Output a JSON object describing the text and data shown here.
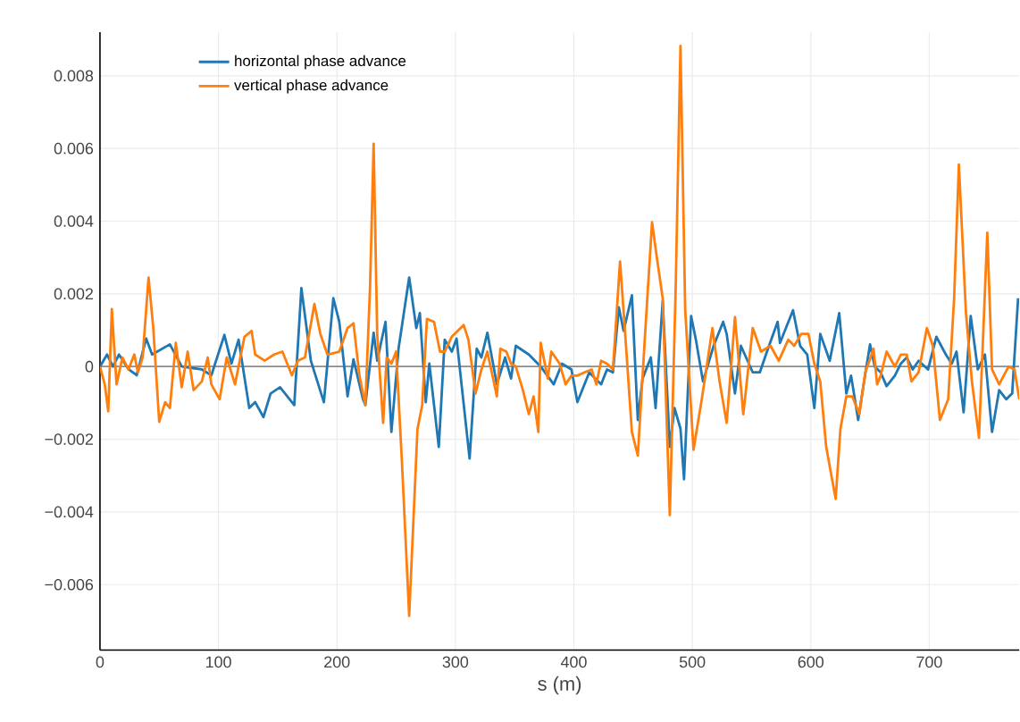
{
  "chart_data": {
    "type": "line",
    "xlabel": "s (m)",
    "xlim": [
      0,
      776
    ],
    "ylim": [
      -0.0078,
      0.0092
    ],
    "xticks": [
      0,
      100,
      200,
      300,
      400,
      500,
      600,
      700
    ],
    "yticks": [
      {
        "value": -0.006,
        "label": "−0.006"
      },
      {
        "value": -0.004,
        "label": "−0.004"
      },
      {
        "value": -0.002,
        "label": "−0.002"
      },
      0,
      0.002,
      0.004,
      0.006,
      0.008
    ],
    "grid": true,
    "legend": "top left",
    "marker": "none",
    "line_style": "solid",
    "series": [
      {
        "name": "horizontal phase advance",
        "color": "#1f77b4",
        "x": [
          0,
          6,
          11,
          16,
          24,
          31,
          39,
          44,
          59,
          69,
          79,
          86,
          94,
          105,
          111,
          117,
          126,
          131,
          138,
          144,
          152,
          164,
          170,
          178,
          189,
          197,
          202,
          209,
          214,
          222,
          224,
          231,
          234,
          241,
          246,
          252,
          261,
          267,
          270,
          275,
          278,
          286,
          291,
          297,
          301,
          312,
          318,
          322,
          327,
          335,
          342,
          347,
          351,
          362,
          372,
          383,
          390,
          398,
          403,
          413,
          423,
          428,
          433,
          438,
          442,
          449,
          454,
          458,
          465,
          469,
          475,
          481,
          485,
          490,
          493,
          499,
          503,
          509,
          518,
          526,
          529,
          536,
          541,
          551,
          557,
          563,
          572,
          574,
          585,
          591,
          597,
          603,
          608,
          616,
          624,
          630,
          634,
          640,
          645,
          650,
          654,
          659,
          664,
          671,
          676,
          681,
          686,
          691,
          699,
          706,
          714,
          719,
          723,
          729,
          735,
          741,
          747,
          753,
          759,
          765,
          770,
          775
        ],
        "values": [
          0,
          0.00033,
          0,
          0.00033,
          -7e-05,
          -0.00024,
          0.00077,
          0.00033,
          0.00061,
          0,
          -5e-05,
          -8e-05,
          -0.00024,
          0.00087,
          8e-05,
          0.00074,
          -0.00114,
          -0.00098,
          -0.00139,
          -0.00074,
          -0.00057,
          -0.00106,
          0.00216,
          0.00016,
          -0.00098,
          0.00188,
          0.00123,
          -0.00082,
          0.0002,
          -0.0009,
          -0.00106,
          0.00093,
          0.00016,
          0.00123,
          -0.0018,
          0.00049,
          0.00245,
          0.00106,
          0.00147,
          -0.00098,
          8e-05,
          -0.00221,
          0.00074,
          0.00041,
          0.00077,
          -0.00253,
          0.00049,
          0.00025,
          0.00093,
          -0.00049,
          0.00025,
          -0.00033,
          0.00057,
          0.00033,
          0,
          -0.00049,
          8e-05,
          -8e-05,
          -0.00098,
          -0.00016,
          -0.00049,
          -8e-05,
          -0.00016,
          0.00163,
          0.00098,
          0.00196,
          -0.00147,
          -0.00033,
          0.00025,
          -0.00114,
          0.0018,
          -0.00221,
          -0.00114,
          -0.00171,
          -0.0031,
          0.00139,
          0.00074,
          -0.00041,
          0.00057,
          0.00123,
          0.0009,
          -0.00074,
          0.00057,
          -0.00016,
          -0.00016,
          0.00041,
          0.00123,
          0.00065,
          0.00155,
          0.00057,
          0.00033,
          -0.00114,
          0.0009,
          0.00016,
          0.00147,
          -0.00074,
          -0.00025,
          -0.00147,
          -0.00041,
          0.00061,
          0,
          -0.00016,
          -0.00054,
          -0.00025,
          8e-05,
          0.00025,
          -8e-05,
          0.00016,
          -8e-05,
          0.00082,
          0.00033,
          8e-05,
          0.00041,
          -0.00126,
          0.00139,
          -8e-05,
          0.00033,
          -0.0018,
          -0.00065,
          -0.0009,
          -0.00074,
          0.00188
        ]
      },
      {
        "name": "vertical phase advance",
        "color": "#ff7f0e",
        "x": [
          0,
          4,
          7,
          10,
          14,
          19,
          24,
          29,
          32,
          36,
          41,
          45,
          50,
          55,
          59,
          64,
          69,
          74,
          79,
          86,
          91,
          94,
          101,
          107,
          114,
          122,
          128,
          131,
          139,
          147,
          154,
          162,
          167,
          173,
          181,
          186,
          192,
          202,
          209,
          214,
          219,
          224,
          228,
          231,
          234,
          239,
          242,
          246,
          250,
          255,
          261,
          268,
          272,
          276,
          282,
          287,
          291,
          297,
          307,
          311,
          317,
          322,
          327,
          335,
          338,
          343,
          347,
          351,
          357,
          362,
          366,
          370,
          372,
          378,
          381,
          388,
          393,
          398,
          403,
          409,
          415,
          419,
          423,
          428,
          433,
          439,
          443,
          449,
          454,
          460,
          466,
          470,
          475,
          481,
          486,
          490,
          494,
          501,
          508,
          517,
          523,
          529,
          536,
          543,
          551,
          558,
          566,
          573,
          581,
          586,
          592,
          598,
          603,
          608,
          613,
          621,
          625,
          630,
          635,
          641,
          646,
          653,
          656,
          659,
          664,
          671,
          676,
          681,
          685,
          691,
          698,
          703,
          709,
          716,
          721,
          725,
          731,
          736,
          742,
          749,
          753,
          759,
          767,
          772,
          776
        ],
        "values": [
          0,
          -0.00049,
          -0.00123,
          0.00158,
          -0.00049,
          0.00025,
          -8e-05,
          0.00033,
          -0.00016,
          0.00025,
          0.00245,
          0.00106,
          -0.00152,
          -0.00098,
          -0.00114,
          0.00065,
          -0.00057,
          0.00041,
          -0.00065,
          -0.00041,
          0.00025,
          -0.00049,
          -0.0009,
          0.00025,
          -0.00049,
          0.00082,
          0.00098,
          0.00033,
          0.00016,
          0.00033,
          0.00041,
          -0.00024,
          0.00016,
          0.00025,
          0.00172,
          0.0009,
          0.00033,
          0.00041,
          0.00106,
          0.00119,
          -0.00025,
          -0.00106,
          0.00221,
          0.00613,
          0.0009,
          -0.00155,
          0.00025,
          8e-05,
          0.00041,
          -0.0027,
          -0.00686,
          -0.00172,
          -0.00106,
          0.00131,
          0.00123,
          0.00041,
          0.00041,
          0.00082,
          0.00114,
          0.00074,
          -0.00074,
          -8e-05,
          0.00041,
          -0.00082,
          0.00049,
          0.00041,
          8e-05,
          0,
          -0.00065,
          -0.00131,
          -0.00082,
          -0.0018,
          0.00065,
          -0.00033,
          0.00041,
          8e-05,
          -0.00049,
          -0.00025,
          -0.00025,
          -0.00016,
          -8e-05,
          -0.00049,
          0.00016,
          8e-05,
          -8e-05,
          0.00289,
          0.00106,
          -0.0018,
          -0.00245,
          0.00082,
          0.00397,
          0.00302,
          0.00188,
          -0.00409,
          0.00221,
          0.00882,
          0.00155,
          -0.00229,
          -0.0009,
          0.00106,
          -0.00041,
          -0.00155,
          0.00136,
          -0.00131,
          0.00106,
          0.00041,
          0.00057,
          0.00016,
          0.00074,
          0.00057,
          0.0009,
          0.0009,
          8e-05,
          -0.00041,
          -0.00221,
          -0.00364,
          -0.00172,
          -0.00082,
          -0.00082,
          -0.00131,
          -0.00016,
          0.00049,
          -0.00049,
          -0.00025,
          0.00041,
          0,
          0.00033,
          0.00033,
          -0.00041,
          -0.00016,
          0.00106,
          0.00057,
          -0.00147,
          -0.0009,
          0.00188,
          0.00556,
          0.00147,
          -0.00041,
          -0.00196,
          0.00368,
          -8e-05,
          -0.00049,
          0,
          -8e-05,
          -0.0009
        ]
      }
    ]
  }
}
